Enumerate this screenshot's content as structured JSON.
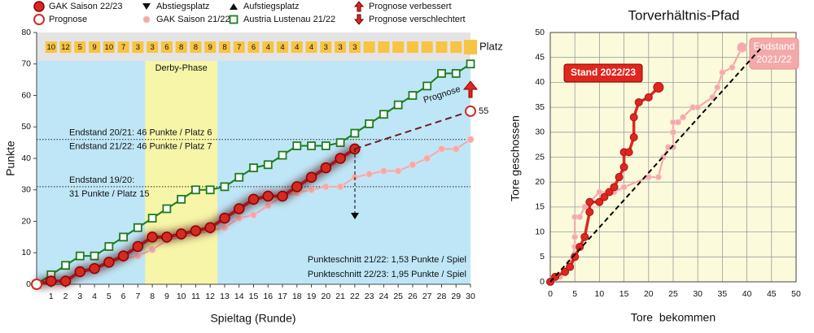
{
  "chart_data": [
    {
      "type": "line",
      "x_label": "Spieltag (Runde)",
      "y_label": "Punkte",
      "xlim": [
        0,
        30
      ],
      "ylim": [
        0,
        80
      ],
      "xticks": [
        1,
        2,
        3,
        4,
        5,
        6,
        7,
        8,
        9,
        10,
        11,
        12,
        13,
        14,
        15,
        16,
        17,
        18,
        19,
        20,
        21,
        22,
        23,
        24,
        25,
        26,
        27,
        28,
        29,
        30
      ],
      "yticks": [
        0,
        10,
        20,
        30,
        40,
        50,
        60,
        70,
        80
      ],
      "x": [
        0,
        1,
        2,
        3,
        4,
        5,
        6,
        7,
        8,
        9,
        10,
        11,
        12,
        13,
        14,
        15,
        16,
        17,
        18,
        19,
        20,
        21,
        22,
        23,
        24,
        25,
        26,
        27,
        28,
        29,
        30
      ],
      "series": [
        {
          "name": "GAK Saison 22/23",
          "color": "#d42a22",
          "marker": "circle",
          "values": [
            0,
            1,
            1,
            4,
            5,
            7,
            9,
            12,
            15,
            15,
            16,
            17,
            18,
            21,
            24,
            27,
            28,
            28,
            31,
            34,
            37,
            40,
            43,
            null,
            null,
            null,
            null,
            null,
            null,
            null,
            null
          ]
        },
        {
          "name": "GAK Saison 21/22",
          "color": "#f4a9a9",
          "marker": "dot",
          "values": [
            0,
            1,
            1,
            4,
            5,
            7,
            8,
            9,
            11,
            14,
            15,
            16,
            17,
            18,
            21,
            22,
            25,
            28,
            29,
            30,
            31,
            31,
            34,
            35,
            36,
            36,
            38,
            40,
            43,
            43,
            46
          ]
        },
        {
          "name": "Austria Lustenau 21/22",
          "color": "#1e7d1e",
          "marker": "square",
          "values": [
            0,
            3,
            6,
            9,
            9,
            12,
            15,
            18,
            21,
            24,
            27,
            30,
            30,
            31,
            34,
            37,
            38,
            41,
            44,
            44,
            44,
            45,
            48,
            51,
            54,
            57,
            60,
            63,
            67,
            67,
            70
          ]
        },
        {
          "name": "Prognose",
          "color": "#6b1f22",
          "marker": "ring",
          "dashed": true,
          "values": [
            0,
            null,
            null,
            null,
            null,
            null,
            null,
            null,
            null,
            null,
            null,
            null,
            null,
            null,
            null,
            null,
            null,
            null,
            null,
            null,
            null,
            null,
            43,
            null,
            null,
            null,
            null,
            null,
            null,
            null,
            55
          ],
          "value_label": "55"
        }
      ],
      "legend_extra": [
        "Abstiegsplatz",
        "Aufstiegsplatz",
        "Prognose verbessert",
        "Prognose verschlechtert"
      ],
      "highlight": {
        "label": "Derby-Phase",
        "range": [
          7.5,
          12.5
        ]
      },
      "reference_lines": [
        {
          "value": 46,
          "labels": [
            "Endstand 20/21: 46 Punkte / Platz 6",
            "Endstand 21/22: 46 Punkte / Platz 7"
          ]
        },
        {
          "value": 31,
          "labels": [
            "Endstand 19/20:",
            "31 Punkte / Platz 15"
          ]
        }
      ],
      "platz": {
        "label": "Platz",
        "values": [
          10,
          12,
          5,
          9,
          10,
          7,
          3,
          3,
          6,
          8,
          8,
          9,
          8,
          7,
          6,
          4,
          4,
          4,
          4,
          3,
          3,
          3,
          null,
          null,
          null,
          null,
          null,
          null,
          null
        ]
      },
      "notes": [
        "Punkteschnitt 21/22: 1,53 Punkte / Spiel",
        "Punkteschnitt 22/23: 1,95 Punkte / Spiel"
      ]
    },
    {
      "type": "line",
      "title": "Torverhältnis-Pfad",
      "x_label": "Tore  bekommen",
      "y_label": "Tore geschossen",
      "xlim": [
        0,
        50
      ],
      "ylim": [
        0,
        50
      ],
      "xticks": [
        0,
        5,
        10,
        15,
        20,
        25,
        30,
        35,
        40,
        45,
        50
      ],
      "yticks": [
        0,
        5,
        10,
        15,
        20,
        25,
        30,
        35,
        40,
        45,
        50
      ],
      "grid": true,
      "series": [
        {
          "name": "Endstand 2021/22",
          "label_lines": [
            "Endstand",
            "2021/22"
          ],
          "color": "#f4a9a9",
          "x": [
            0,
            2,
            4,
            5,
            5,
            5,
            6,
            7,
            8,
            10,
            13,
            15,
            20,
            22,
            23,
            24,
            25,
            25,
            25,
            26,
            27,
            29,
            30,
            33,
            34,
            35,
            37,
            39
          ],
          "values": [
            0,
            1,
            4,
            7,
            9,
            13,
            13,
            15,
            16,
            18,
            18,
            19,
            21,
            21,
            25,
            27,
            27,
            30,
            32,
            32,
            33,
            35,
            35,
            37,
            39,
            42,
            43,
            47
          ]
        },
        {
          "name": "Stand 2022/23",
          "color": "#e0261d",
          "x": [
            0,
            1,
            3,
            4,
            5,
            6,
            7,
            8,
            8,
            10,
            11,
            12,
            13,
            14,
            15,
            15,
            16,
            17,
            17,
            18,
            20,
            22
          ],
          "values": [
            0,
            1,
            2,
            3,
            5,
            7,
            9,
            14,
            16,
            16,
            17,
            18,
            19,
            21,
            23,
            26,
            26,
            29,
            33,
            36,
            37,
            39
          ]
        }
      ]
    }
  ]
}
